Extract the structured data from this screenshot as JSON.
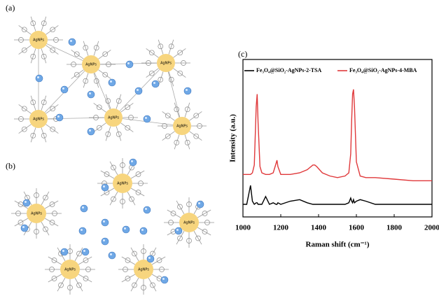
{
  "panels": {
    "a": "(a)",
    "b": "(b)",
    "c": "(c)"
  },
  "particle_label": "AgNPs",
  "chart_data": {
    "type": "line",
    "xlabel": "Raman shift (cm⁻¹)",
    "ylabel": "Intensity (a.u.)",
    "x": [
      1000,
      1020,
      1040,
      1050,
      1060,
      1070,
      1075,
      1080,
      1090,
      1100,
      1120,
      1140,
      1160,
      1175,
      1180,
      1185,
      1200,
      1250,
      1300,
      1340,
      1370,
      1380,
      1390,
      1420,
      1460,
      1500,
      1540,
      1560,
      1570,
      1575,
      1580,
      1585,
      1590,
      1600,
      1620,
      1650,
      1700,
      1800,
      1900,
      2000
    ],
    "series": [
      {
        "name": "Fe₃O₄@SiO₂-AgNPs-2-TSA",
        "color": "#000000",
        "values": [
          8,
          8,
          20,
          10,
          8,
          9,
          9,
          8,
          8,
          8,
          13,
          8,
          9,
          8,
          8,
          9,
          8,
          10,
          11,
          9,
          8,
          8,
          8,
          8,
          8,
          8,
          8,
          9,
          12,
          10,
          9,
          11,
          9,
          10,
          11,
          10,
          8,
          8,
          8,
          8
        ]
      },
      {
        "name": "Fe₃O₄@SiO₂-AgNPs-4-MBA",
        "color": "#e0393b",
        "values": [
          27,
          27,
          27,
          28,
          33,
          70,
          78,
          60,
          32,
          28,
          27,
          27,
          28,
          34,
          36,
          32,
          27,
          27,
          28,
          30,
          33,
          33,
          32,
          28,
          26,
          25,
          26,
          28,
          40,
          62,
          78,
          81,
          70,
          35,
          26,
          25,
          25,
          24,
          23,
          23
        ]
      }
    ],
    "xlim": [
      1000,
      2000
    ],
    "xticks": [
      1000,
      1200,
      1400,
      1600,
      1800,
      2000
    ],
    "ylim": [
      0,
      100
    ]
  }
}
